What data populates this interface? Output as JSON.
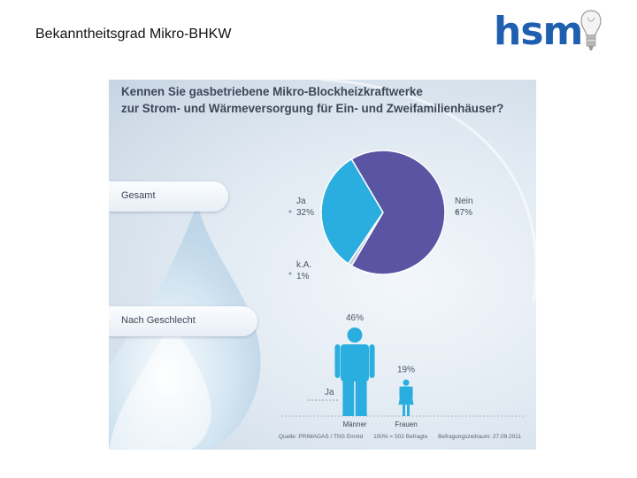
{
  "slide": {
    "title": "Bekanntheitsgrad Mikro-BHKW"
  },
  "logo": {
    "text": "hsm"
  },
  "infographic": {
    "question_line1": "Kennen Sie gasbetriebene Mikro-Blockheizkraftwerke",
    "question_line2": "zur Strom- und Wärmeversorgung für Ein- und Zweifamilienhäuser?",
    "tab_gesamt": "Gesamt",
    "tab_geschlecht": "Nach Geschlecht",
    "footer": {
      "source": "Quelle: PRIMAGAS / TNS Emnid",
      "sample": "100% = 502 Befragte",
      "period": "Befragungszeitraum: 27.09.2011"
    }
  },
  "chart_data": [
    {
      "type": "pie",
      "title": "Gesamt",
      "slices": [
        {
          "label": "Ja",
          "value": 32,
          "value_label": "32%",
          "color": "#2aaee0"
        },
        {
          "label": "Nein",
          "value": 67,
          "value_label": "67%",
          "color": "#5a55a3"
        },
        {
          "label": "k.A.",
          "value": 1,
          "value_label": "1%",
          "color": "#c4c9d6"
        }
      ]
    },
    {
      "type": "bar",
      "title": "Nach Geschlecht",
      "series_label": "Ja",
      "categories": [
        "Männer",
        "Frauen"
      ],
      "values": [
        46,
        19
      ],
      "value_labels": [
        "46%",
        "19%"
      ],
      "colors": [
        "#2aaee0",
        "#2aaee0"
      ]
    }
  ]
}
